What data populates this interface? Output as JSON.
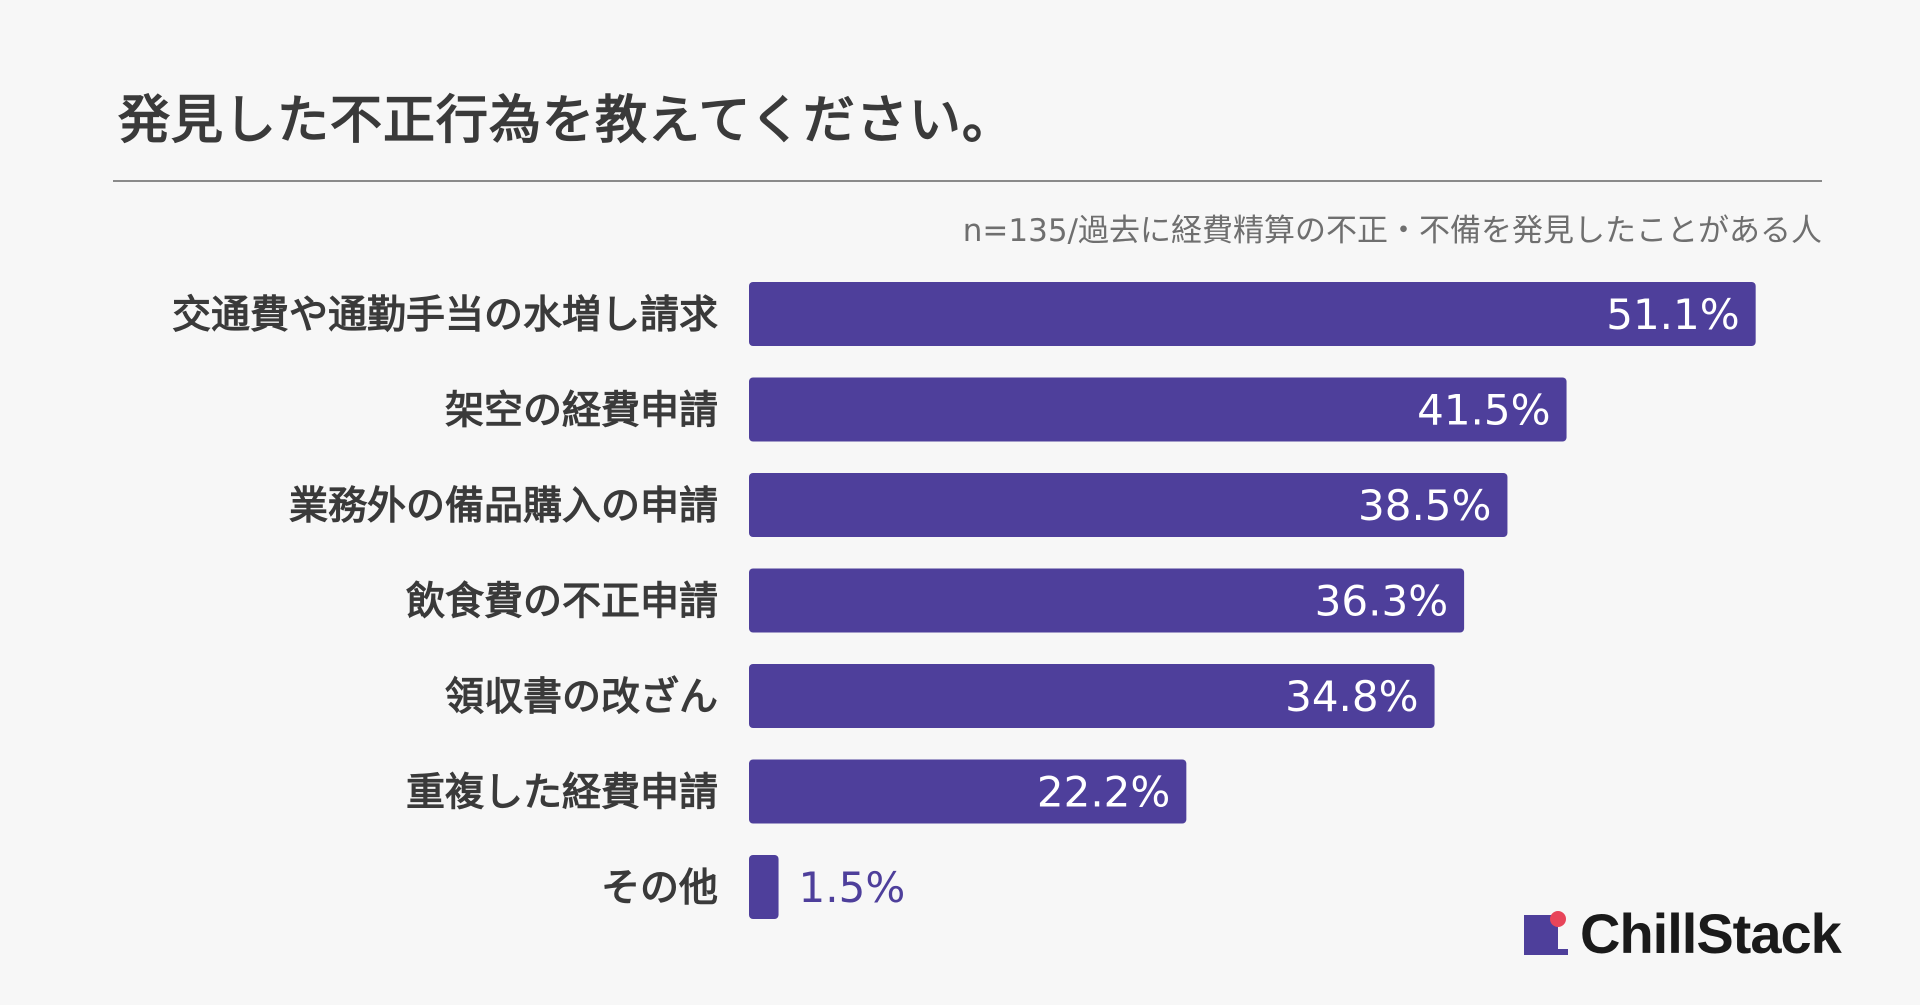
{
  "title": "発見した不正行為を教えてください。",
  "note": "n=135/過去に経費精算の不正・不備を発見したことがある人",
  "logo": {
    "text": "ChillStack",
    "icon": "chillstack-logo-icon"
  },
  "colors": {
    "bar": "#4e3f9b",
    "label_inside": "#ffffff",
    "label_outside": "#4e3f9b",
    "category": "#3a3a3a",
    "logo_dot": "#e8455a"
  },
  "chart_data": {
    "type": "bar",
    "orientation": "horizontal",
    "categories": [
      "交通費や通勤手当の水増し請求",
      "架空の経費申請",
      "業務外の備品購入の申請",
      "飲食費の不正申請",
      "領収書の改ざん",
      "重複した経費申請",
      "その他"
    ],
    "values": [
      51.1,
      41.5,
      38.5,
      36.3,
      34.8,
      22.2,
      1.5
    ],
    "value_labels": [
      "51.1%",
      "41.5%",
      "38.5%",
      "36.3%",
      "34.8%",
      "22.2%",
      "1.5%"
    ],
    "xlim": [
      0,
      100
    ],
    "grid": false,
    "legend": false
  }
}
